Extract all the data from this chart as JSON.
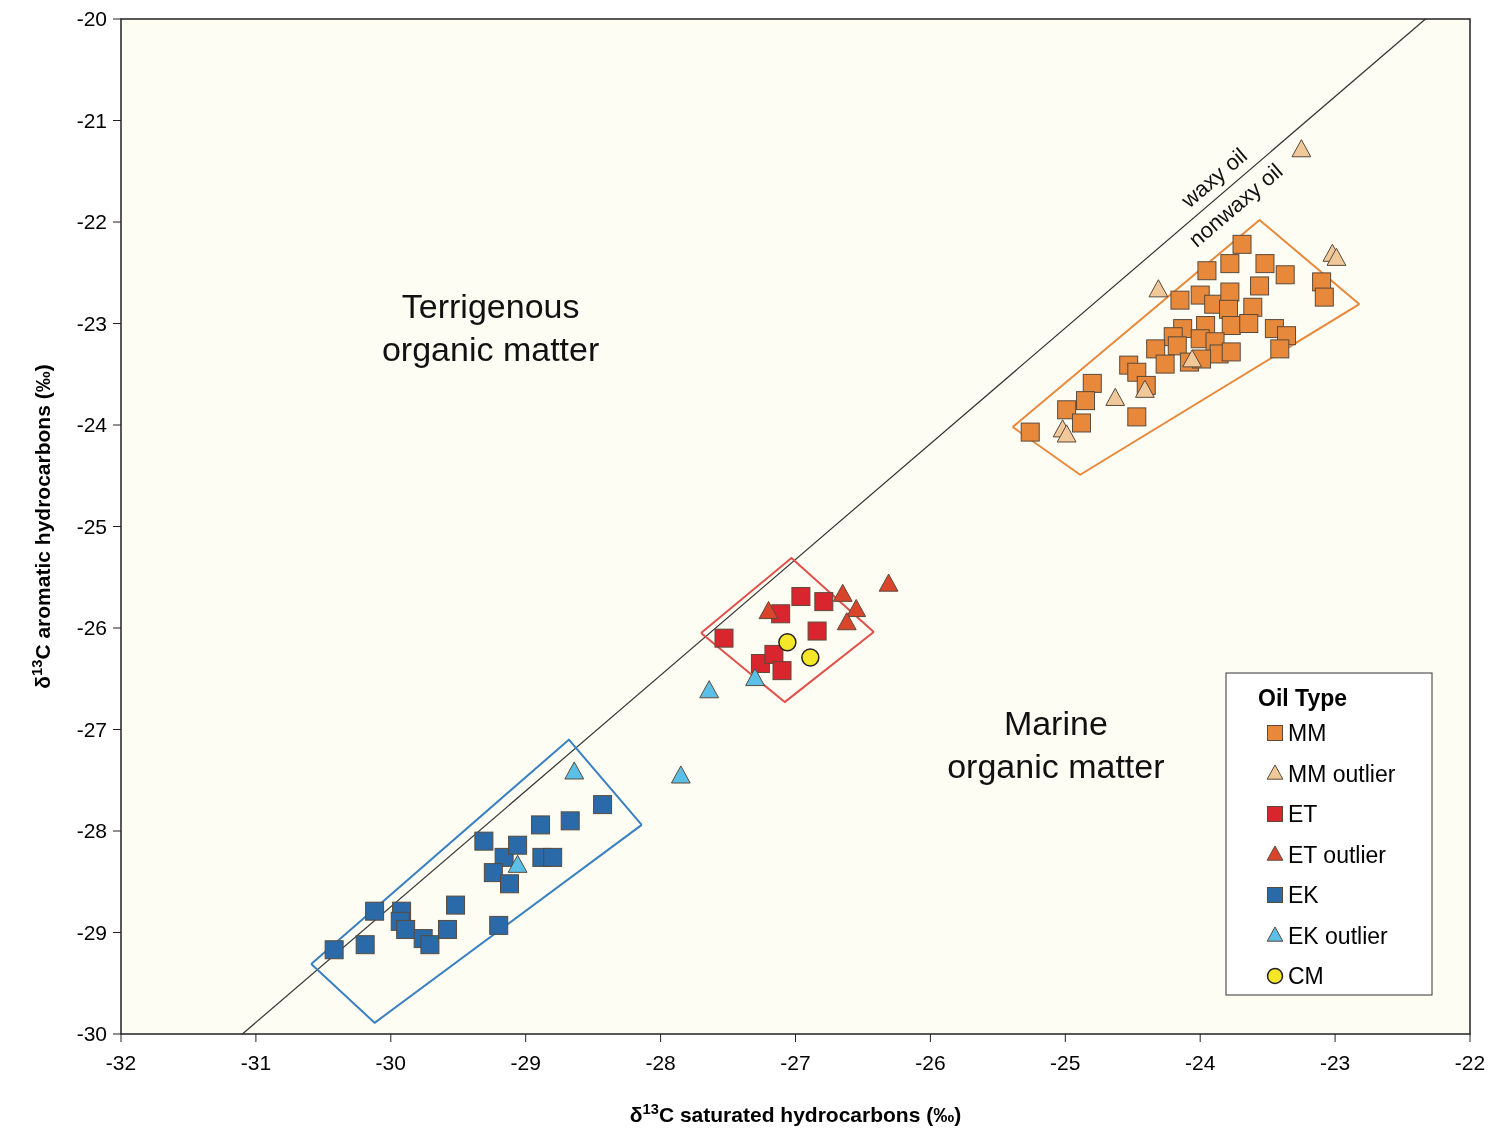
{
  "chart_data": {
    "type": "scatter",
    "xlabel": "δ$^{13}$C saturated hydrocarbons (‰)",
    "ylabel": "δ$^{13}$C aromatic hydrocarbons (‰)",
    "xlim": [
      -32,
      -22
    ],
    "ylim": [
      -30,
      -20
    ],
    "xticks": [
      -32,
      -31,
      -30,
      -29,
      -28,
      -27,
      -26,
      -25,
      -24,
      -23,
      -22
    ],
    "yticks": [
      -20,
      -21,
      -22,
      -23,
      -24,
      -25,
      -26,
      -27,
      -28,
      -29,
      -30
    ],
    "grid": false,
    "legend": "bottom right",
    "legend_title": "Oil Type",
    "annotations": [
      "Terrigenous\norganic matter",
      "Marine\norganic matter",
      "waxy oil",
      "nonwaxy oil"
    ],
    "series": [
      {
        "type": "line",
        "color": "#333333",
        "marker": "none",
        "x": [
          -31.1,
          -22.33
        ],
        "values": [
          -30,
          -20
        ]
      },
      {
        "type": "line",
        "color": "#e8883a",
        "marker": "none",
        "x": [
          -25.39,
          -23.56,
          -22.82
        ],
        "values": [
          -24.02,
          -21.98,
          -22.81
        ]
      },
      {
        "type": "line",
        "color": "#e8883a",
        "marker": "none",
        "x": [
          -25.39,
          -24.89,
          -22.82
        ],
        "values": [
          -24.02,
          -24.49,
          -22.81
        ]
      },
      {
        "type": "line",
        "color": "#e0504a",
        "marker": "none",
        "x": [
          -27.7,
          -27.03,
          -26.42
        ],
        "values": [
          -26.05,
          -25.31,
          -26.04
        ]
      },
      {
        "type": "line",
        "color": "#e0504a",
        "marker": "none",
        "x": [
          -27.7,
          -27.08,
          -26.42
        ],
        "values": [
          -26.05,
          -26.73,
          -26.04
        ]
      },
      {
        "type": "line",
        "color": "#3a80c0",
        "marker": "none",
        "x": [
          -30.59,
          -28.68,
          -28.14
        ],
        "values": [
          -29.31,
          -27.1,
          -27.94
        ]
      },
      {
        "type": "line",
        "color": "#3a80c0",
        "marker": "none",
        "x": [
          -30.59,
          -30.12,
          -28.14
        ],
        "values": [
          -29.31,
          -29.89,
          -27.94
        ]
      },
      {
        "name": "MM",
        "color": "#e8883a",
        "marker": "square",
        "x": [
          -23.69,
          -23.78,
          -23.95,
          -23.52,
          -23.37,
          -23.1,
          -23.08,
          -23.56,
          -24.15,
          -24.0,
          -23.9,
          -23.78,
          -23.79,
          -23.61,
          -24.13,
          -23.96,
          -23.77,
          -23.64,
          -23.45,
          -23.36,
          -23.41,
          -24.2,
          -24.17,
          -24.0,
          -23.89,
          -23.86,
          -23.77,
          -24.53,
          -24.47,
          -24.4,
          -24.33,
          -24.26,
          -24.08,
          -23.99,
          -24.8,
          -24.85,
          -24.99,
          -24.88,
          -25.26,
          -24.47
        ],
        "values": [
          -22.22,
          -22.41,
          -22.48,
          -22.41,
          -22.52,
          -22.59,
          -22.74,
          -22.63,
          -22.77,
          -22.72,
          -22.81,
          -22.69,
          -22.86,
          -22.84,
          -23.05,
          -23.02,
          -23.02,
          -23.0,
          -23.05,
          -23.12,
          -23.25,
          -23.13,
          -23.22,
          -23.15,
          -23.18,
          -23.3,
          -23.28,
          -23.41,
          -23.48,
          -23.61,
          -23.25,
          -23.4,
          -23.38,
          -23.35,
          -23.59,
          -23.76,
          -23.85,
          -23.98,
          -24.07,
          -23.92
        ]
      },
      {
        "name": "MM outlier",
        "color": "#f0c89a",
        "marker": "triangle",
        "x": [
          -23.25,
          -23.02,
          -22.99,
          -24.31,
          -25.02,
          -24.99,
          -24.63,
          -24.41,
          -24.06
        ],
        "values": [
          -21.29,
          -22.32,
          -22.36,
          -22.67,
          -24.05,
          -24.1,
          -23.74,
          -23.66,
          -23.36
        ]
      },
      {
        "name": "ET",
        "color": "#d9262e",
        "marker": "square",
        "x": [
          -27.53,
          -27.11,
          -26.96,
          -26.79,
          -26.84,
          -27.26,
          -27.16,
          -27.1
        ],
        "values": [
          -26.1,
          -25.86,
          -25.69,
          -25.74,
          -26.03,
          -26.35,
          -26.26,
          -26.42
        ]
      },
      {
        "name": "ET outlier",
        "color": "#d9442a",
        "marker": "triangle",
        "x": [
          -27.2,
          -26.65,
          -26.55,
          -26.62,
          -26.31
        ],
        "values": [
          -25.84,
          -25.67,
          -25.82,
          -25.95,
          -25.57
        ]
      },
      {
        "name": "EK",
        "color": "#2a6aa8",
        "marker": "square",
        "x": [
          -30.42,
          -30.19,
          -30.12,
          -29.92,
          -29.93,
          -29.89,
          -29.76,
          -29.71,
          -29.58,
          -29.52,
          -29.31,
          -29.16,
          -29.06,
          -29.24,
          -29.12,
          -28.89,
          -28.67,
          -28.43,
          -28.88,
          -28.8,
          -29.2
        ],
        "values": [
          -29.17,
          -29.12,
          -28.79,
          -28.79,
          -28.89,
          -28.97,
          -29.06,
          -29.12,
          -28.97,
          -28.73,
          -28.1,
          -28.26,
          -28.14,
          -28.41,
          -28.52,
          -27.94,
          -27.9,
          -27.74,
          -28.26,
          -28.26,
          -28.93
        ]
      },
      {
        "name": "EK outlier",
        "color": "#5bc0e8",
        "marker": "triangle",
        "x": [
          -28.64,
          -29.06,
          -27.85,
          -27.64,
          -27.3
        ],
        "values": [
          -27.42,
          -28.34,
          -27.46,
          -26.62,
          -26.5
        ]
      },
      {
        "name": "CM",
        "color": "#f5e62a",
        "marker": "circle",
        "x": [
          -27.06,
          -26.89
        ],
        "values": [
          -26.14,
          -26.29
        ]
      }
    ]
  }
}
